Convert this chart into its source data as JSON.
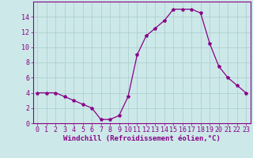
{
  "x": [
    0,
    1,
    2,
    3,
    4,
    5,
    6,
    7,
    8,
    9,
    10,
    11,
    12,
    13,
    14,
    15,
    16,
    17,
    18,
    19,
    20,
    21,
    22,
    23
  ],
  "y": [
    4,
    4,
    4,
    3.5,
    3,
    2.5,
    2,
    0.5,
    0.5,
    1,
    3.5,
    9,
    11.5,
    12.5,
    13.5,
    15,
    15,
    15,
    14.5,
    10.5,
    7.5,
    6,
    5,
    4
  ],
  "line_color": "#880088",
  "marker": "*",
  "marker_size": 3,
  "background_color": "#cce8e8",
  "grid_color": "#aacccc",
  "xlabel": "Windchill (Refroidissement éolien,°C)",
  "xlim": [
    -0.5,
    23.5
  ],
  "ylim": [
    0,
    16
  ],
  "xticks": [
    0,
    1,
    2,
    3,
    4,
    5,
    6,
    7,
    8,
    9,
    10,
    11,
    12,
    13,
    14,
    15,
    16,
    17,
    18,
    19,
    20,
    21,
    22,
    23
  ],
  "yticks": [
    0,
    2,
    4,
    6,
    8,
    10,
    12,
    14
  ],
  "tick_color": "#880088",
  "label_color": "#880088",
  "spine_color": "#880088",
  "font_size_xlabel": 6.5,
  "font_size_ticks": 6
}
